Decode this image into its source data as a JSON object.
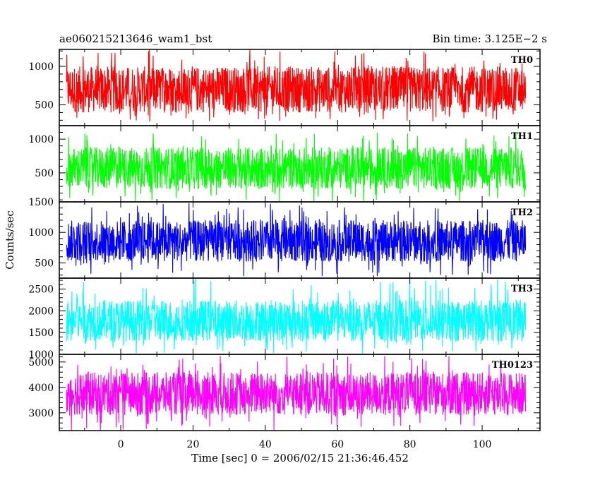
{
  "header": {
    "left_title": "ae060215213646_wam1_bst",
    "right_title": "Bin time: 3.125E−2 s"
  },
  "chart_data": {
    "type": "line",
    "title": "ae060215213646_wam1_bst",
    "subtitle": "Bin time: 3.125E−2 s",
    "xlabel": "Time [sec] 0 = 2006/02/15 21:36:46.452",
    "ylabel": "Counts/sec",
    "xlim": [
      -17,
      116
    ],
    "x_data_range": [
      -15,
      112
    ],
    "bin_time_s": 0.03125,
    "x_ticks": [
      0,
      20,
      40,
      60,
      80,
      100
    ],
    "grid": false,
    "series": [
      {
        "name": "TH0",
        "color": "#ff0000",
        "ylim": [
          230,
          1220
        ],
        "y_ticks": [
          500,
          1000
        ],
        "typical_low": 400,
        "typical_high": 1000,
        "min": 280,
        "max": 1220
      },
      {
        "name": "TH1",
        "color": "#00ff00",
        "ylim": [
          70,
          1200
        ],
        "y_ticks": [
          500,
          1000
        ],
        "typical_low": 260,
        "typical_high": 880,
        "min": 70,
        "max": 1100
      },
      {
        "name": "TH2",
        "color": "#0000ff",
        "ylim": [
          250,
          1500
        ],
        "y_ticks": [
          500,
          1000,
          1500
        ],
        "typical_low": 520,
        "typical_high": 1200,
        "min": 280,
        "max": 1500
      },
      {
        "name": "TH3",
        "color": "#00ffff",
        "ylim": [
          1000,
          2750
        ],
        "y_ticks": [
          1000,
          1500,
          2000,
          2500
        ],
        "typical_low": 1300,
        "typical_high": 2250,
        "min": 1020,
        "max": 2750
      },
      {
        "name": "TH0123",
        "color": "#ff00ff",
        "ylim": [
          2300,
          5300
        ],
        "y_ticks": [
          3000,
          4000,
          5000
        ],
        "typical_low": 2900,
        "typical_high": 4600,
        "min": 2300,
        "max": 5250
      }
    ]
  }
}
